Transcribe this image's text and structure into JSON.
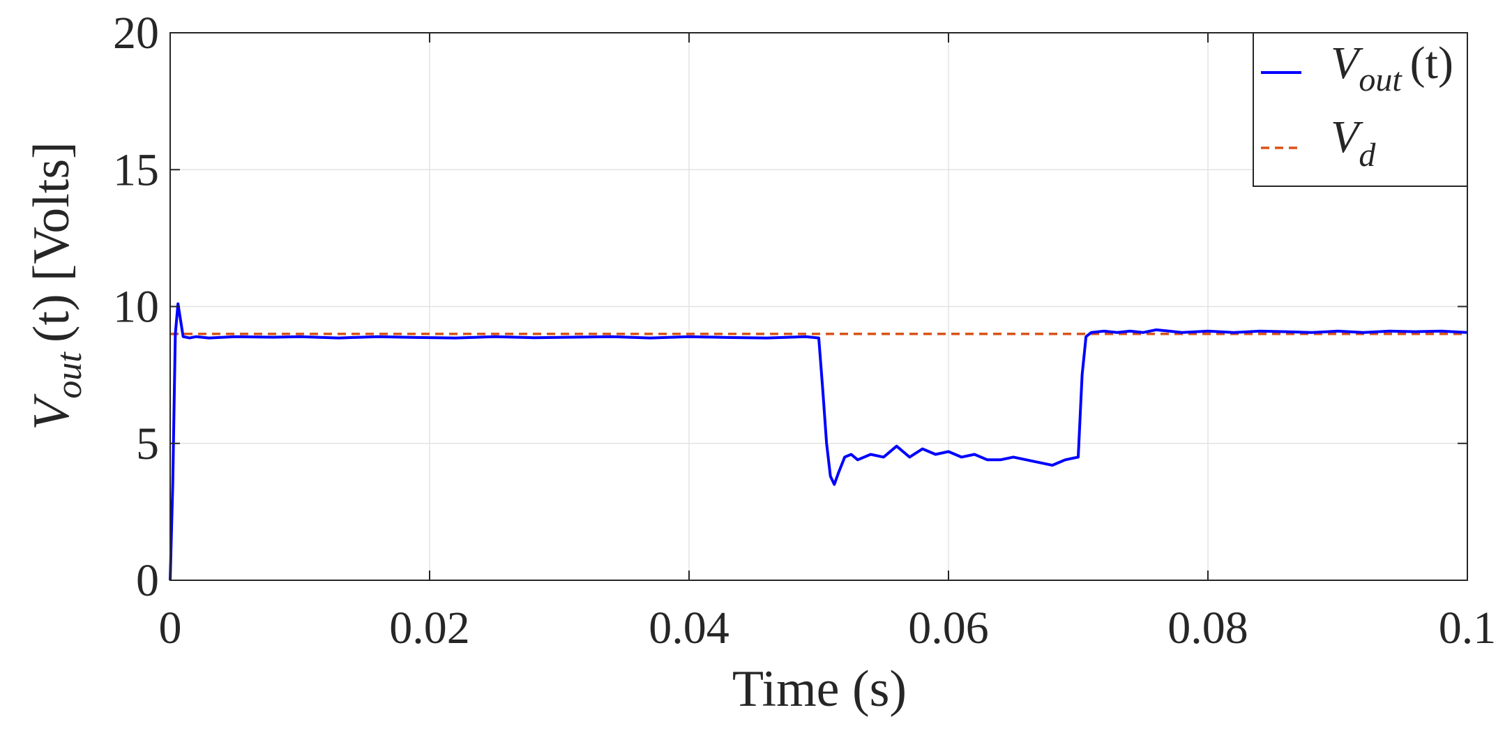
{
  "chart_data": {
    "type": "line",
    "xlabel": "Time (s)",
    "ylabel": {
      "main": "V",
      "subscript": "out",
      "arg": "(t)",
      "unit": "[Volts]"
    },
    "xlim": [
      0,
      0.1
    ],
    "ylim": [
      0,
      20
    ],
    "x_ticks": [
      0,
      0.02,
      0.04,
      0.06,
      0.08,
      0.1
    ],
    "x_tick_labels": [
      "0",
      "0.02",
      "0.04",
      "0.06",
      "0.08",
      "0.1"
    ],
    "y_ticks": [
      0,
      5,
      10,
      15,
      20
    ],
    "y_tick_labels": [
      "0",
      "5",
      "10",
      "15",
      "20"
    ],
    "grid": true,
    "legend_position": "top-right",
    "series": [
      {
        "name": "V_out (t)",
        "legend": {
          "main": "V",
          "subscript": "out",
          "arg": "(t)"
        },
        "color": "#0000ff",
        "style": "solid",
        "x": [
          0,
          0.0002,
          0.0004,
          0.0006,
          0.0008,
          0.001,
          0.0015,
          0.002,
          0.003,
          0.005,
          0.008,
          0.01,
          0.013,
          0.016,
          0.019,
          0.022,
          0.025,
          0.028,
          0.031,
          0.034,
          0.037,
          0.04,
          0.043,
          0.046,
          0.049,
          0.05,
          0.0503,
          0.0506,
          0.0509,
          0.0512,
          0.0515,
          0.052,
          0.0525,
          0.053,
          0.054,
          0.055,
          0.056,
          0.057,
          0.058,
          0.059,
          0.06,
          0.061,
          0.062,
          0.063,
          0.064,
          0.065,
          0.066,
          0.067,
          0.068,
          0.069,
          0.0695,
          0.07,
          0.0703,
          0.0706,
          0.071,
          0.072,
          0.073,
          0.074,
          0.075,
          0.076,
          0.077,
          0.078,
          0.08,
          0.082,
          0.084,
          0.086,
          0.088,
          0.09,
          0.092,
          0.094,
          0.096,
          0.098,
          0.1
        ],
        "y": [
          0,
          3.5,
          9.0,
          10.1,
          9.5,
          8.9,
          8.85,
          8.9,
          8.85,
          8.9,
          8.88,
          8.9,
          8.85,
          8.9,
          8.87,
          8.85,
          8.9,
          8.86,
          8.88,
          8.9,
          8.85,
          8.9,
          8.87,
          8.85,
          8.9,
          8.85,
          7.0,
          5.0,
          3.8,
          3.5,
          3.9,
          4.5,
          4.6,
          4.4,
          4.6,
          4.5,
          4.9,
          4.5,
          4.8,
          4.6,
          4.7,
          4.5,
          4.6,
          4.4,
          4.4,
          4.5,
          4.4,
          4.3,
          4.2,
          4.4,
          4.45,
          4.5,
          7.5,
          8.9,
          9.05,
          9.1,
          9.05,
          9.1,
          9.05,
          9.15,
          9.1,
          9.05,
          9.1,
          9.05,
          9.1,
          9.08,
          9.05,
          9.1,
          9.05,
          9.1,
          9.08,
          9.1,
          9.05
        ]
      },
      {
        "name": "V_d",
        "legend": {
          "main": "V",
          "subscript": "d",
          "arg": ""
        },
        "color": "#d95319",
        "style": "dashed",
        "x": [
          0,
          0.1
        ],
        "y": [
          9,
          9
        ]
      }
    ]
  }
}
